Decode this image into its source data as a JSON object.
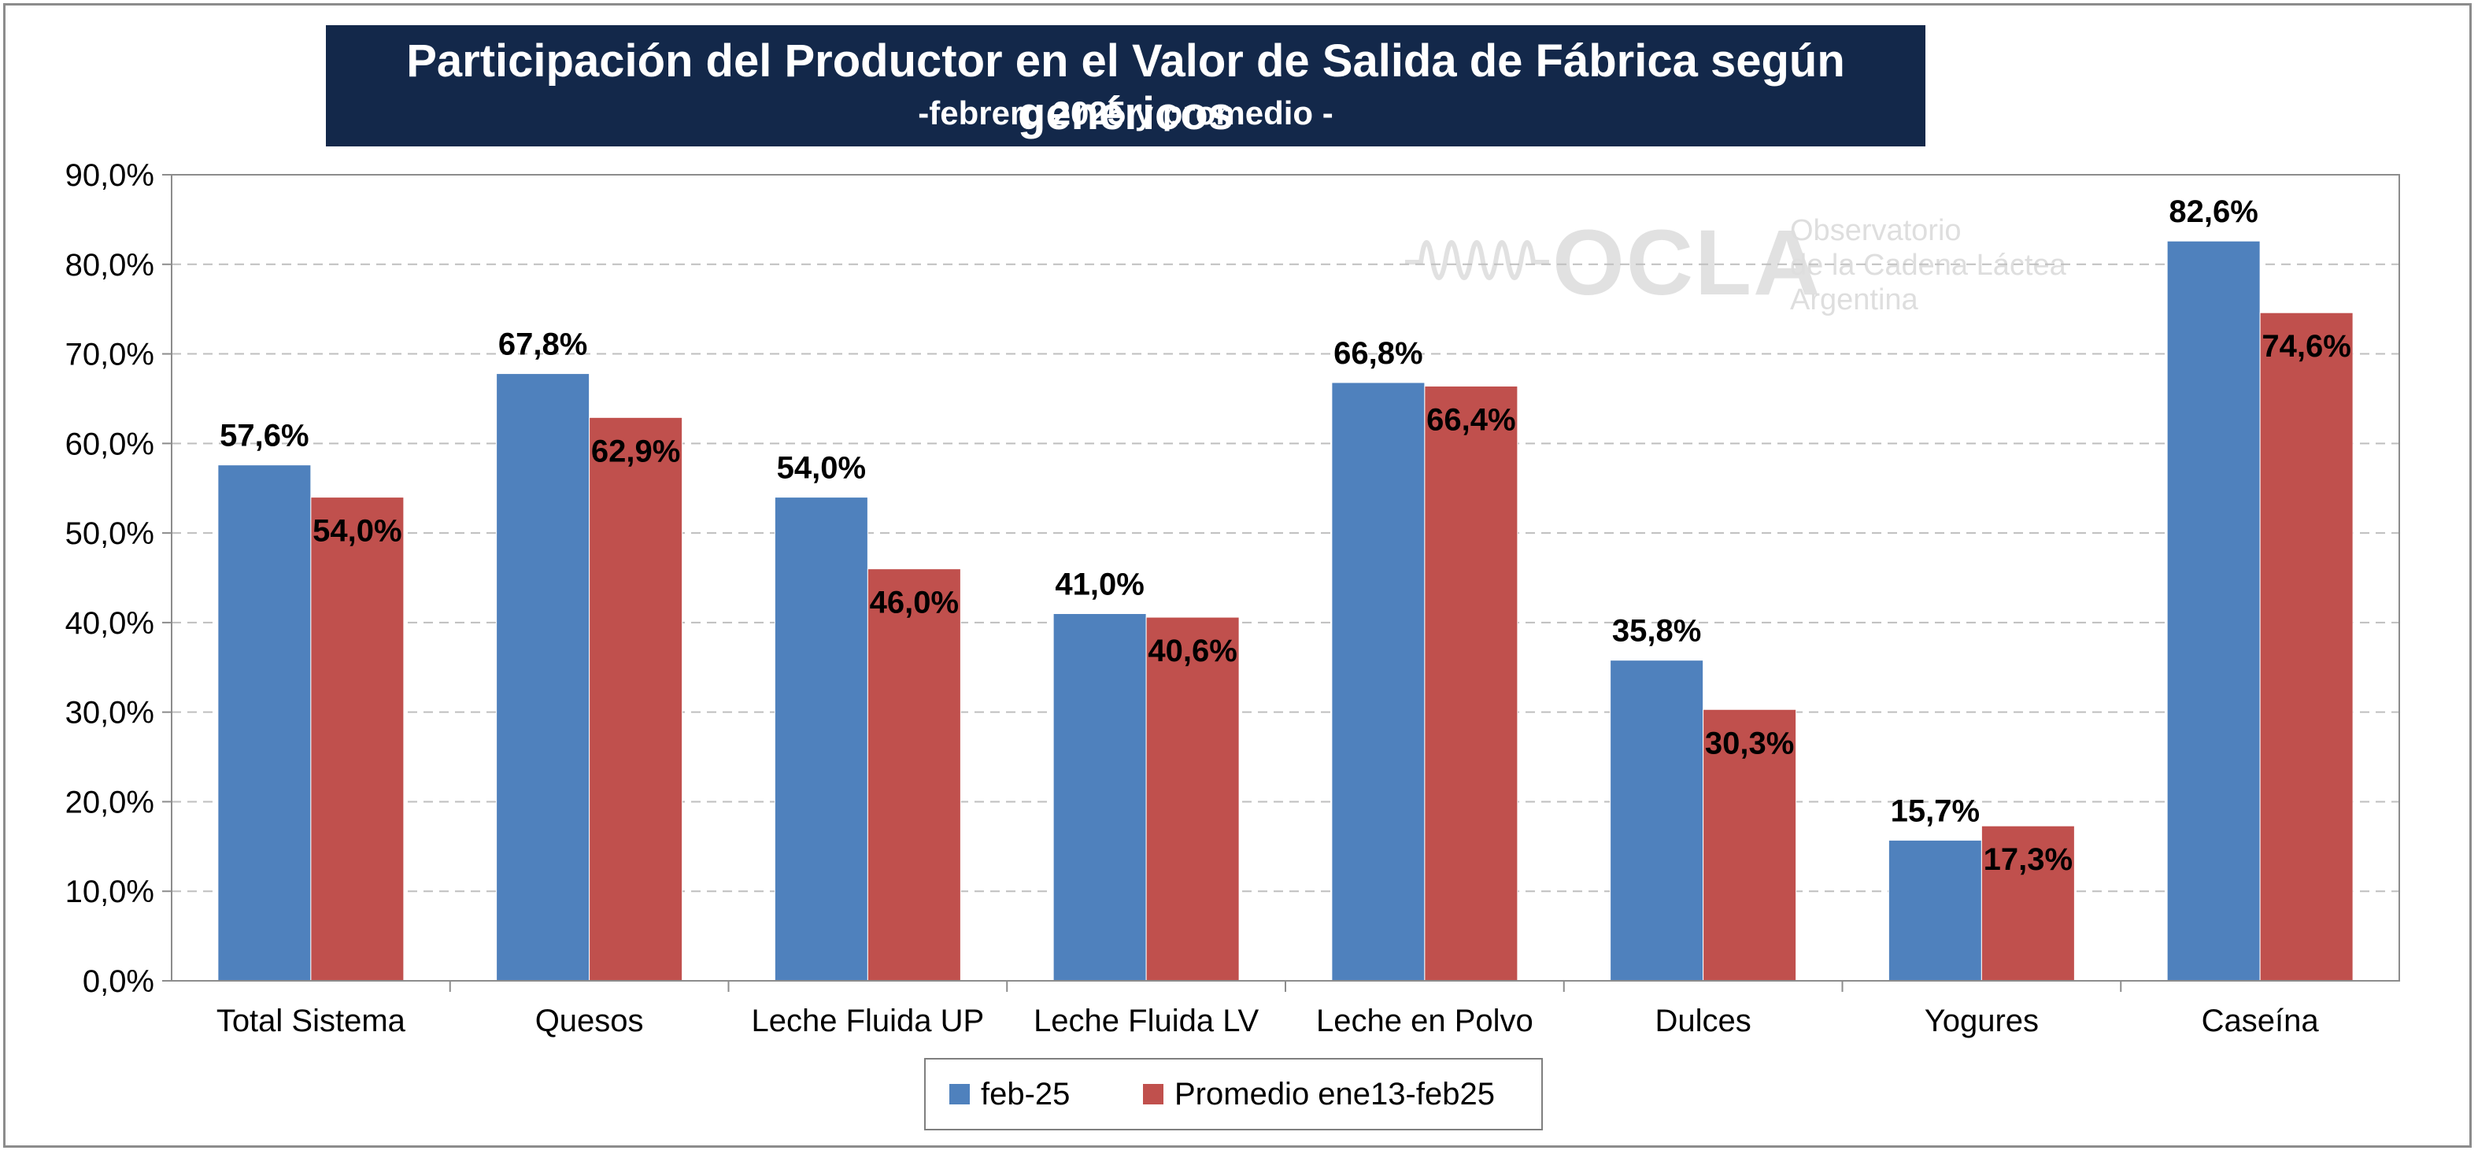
{
  "title": "Participación del Productor en el Valor de Salida de Fábrica según genéricos",
  "subtitle": "-febrero 2025 y promedio  -",
  "watermark": {
    "brand": "OCLA",
    "line1": "Observatorio",
    "line2": "de la Cadena Láctea",
    "line3": "Argentina"
  },
  "legend": {
    "item1": "feb-25",
    "item2": "Promedio ene13-feb25"
  },
  "colors": {
    "feb25": "#4f81bd",
    "promedio": "#c0504d",
    "title_bg": "#13284a",
    "grid": "#bfbfbf"
  },
  "chart_data": {
    "type": "bar",
    "categories": [
      "Total Sistema",
      "Quesos",
      "Leche Fluida UP",
      "Leche Fluida LV",
      "Leche en Polvo",
      "Dulces",
      "Yogures",
      "Caseína"
    ],
    "series": [
      {
        "name": "feb-25",
        "values": [
          57.6,
          67.8,
          54.0,
          41.0,
          66.8,
          35.8,
          15.7,
          82.6
        ],
        "labels": [
          "57,6%",
          "67,8%",
          "54,0%",
          "41,0%",
          "66,8%",
          "35,8%",
          "15,7%",
          "82,6%"
        ]
      },
      {
        "name": "Promedio ene13-feb25",
        "values": [
          54.0,
          62.9,
          46.0,
          40.6,
          66.4,
          30.3,
          17.3,
          74.6
        ],
        "labels": [
          "54,0%",
          "62,9%",
          "46,0%",
          "40,6%",
          "66,4%",
          "30,3%",
          "17,3%",
          "74,6%"
        ]
      }
    ],
    "yticks": [
      "0,0%",
      "10,0%",
      "20,0%",
      "30,0%",
      "40,0%",
      "50,0%",
      "60,0%",
      "70,0%",
      "80,0%",
      "90,0%"
    ],
    "ylim": [
      0,
      90
    ],
    "ystep": 10,
    "grid": true,
    "legend_position": "bottom"
  }
}
